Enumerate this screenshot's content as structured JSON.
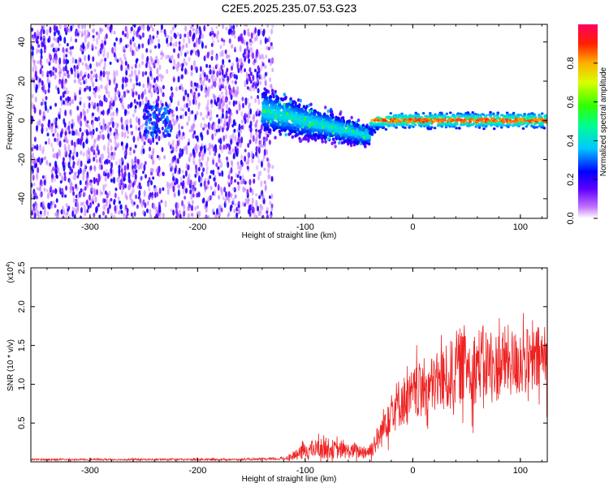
{
  "title": "C2E5.2025.235.07.53.G23",
  "colors": {
    "snr_line": "#ee2222",
    "scatter_base": "#7a10f0",
    "scatter_faint": "#c9b2f2"
  },
  "chart_data": [
    {
      "type": "heatmap",
      "name": "spectrogram",
      "xlabel": "Height of straight line (km)",
      "ylabel": "Frequency (Hz)",
      "xlim": [
        -355,
        125
      ],
      "ylim": [
        -50,
        49
      ],
      "xticks": [
        -300,
        -200,
        -100,
        0,
        100
      ],
      "xtick_labels": [
        "-300",
        "-200",
        "-100",
        "0",
        "100"
      ],
      "yticks": [
        -40,
        -20,
        0,
        20,
        40
      ],
      "ytick_labels": [
        "-40",
        "-20",
        "0",
        "20",
        "40"
      ],
      "colorbar": {
        "label": "Normalized spectral amplitude",
        "range": [
          0,
          1
        ],
        "ticks": [
          0.0,
          0.2,
          0.4,
          0.6,
          0.8
        ],
        "tick_labels": [
          "0.0",
          "0.2",
          "0.4",
          "0.6",
          "0.8"
        ]
      },
      "features": [
        {
          "desc": "diffuse noise",
          "x_range": [
            -355,
            -140
          ],
          "freq_range": [
            -50,
            49
          ],
          "amplitude": 0.15
        },
        {
          "desc": "wide band narrowing",
          "x_range": [
            -140,
            -40
          ],
          "freq_center": [
            5,
            -8
          ],
          "amplitude": 0.3
        },
        {
          "desc": "carrier tone",
          "x_range": [
            -40,
            125
          ],
          "freq_center": 0,
          "amplitude": 0.9
        }
      ]
    },
    {
      "type": "line",
      "name": "snr",
      "xlabel": "Height of straight line (km)",
      "ylabel": "SNR (10 * v/v)",
      "scale_label": "(x10",
      "scale_exp": "4",
      "xlim": [
        -355,
        125
      ],
      "ylim": [
        0,
        2.5
      ],
      "xticks": [
        -300,
        -200,
        -100,
        0,
        100
      ],
      "xtick_labels": [
        "-300",
        "-200",
        "-100",
        "0",
        "100"
      ],
      "yticks": [
        0.5,
        1.0,
        1.5,
        2.0,
        2.5
      ],
      "ytick_labels": [
        "0.5",
        "1.0",
        "1.5",
        "2.0",
        "2.5"
      ],
      "series": [
        {
          "name": "SNR",
          "x": [
            -355,
            -330,
            -300,
            -270,
            -240,
            -210,
            -180,
            -150,
            -120,
            -110,
            -100,
            -90,
            -80,
            -70,
            -60,
            -50,
            -40,
            -30,
            -25,
            -20,
            -15,
            -10,
            -5,
            0,
            5,
            10,
            15,
            20,
            25,
            30,
            35,
            40,
            45,
            50,
            55,
            60,
            65,
            70,
            75,
            80,
            85,
            90,
            95,
            100,
            105,
            110,
            115,
            120,
            125
          ],
          "y_mean": [
            0.03,
            0.03,
            0.03,
            0.03,
            0.03,
            0.03,
            0.03,
            0.03,
            0.04,
            0.08,
            0.14,
            0.17,
            0.18,
            0.15,
            0.14,
            0.13,
            0.14,
            0.35,
            0.55,
            0.7,
            0.72,
            0.8,
            0.78,
            0.85,
            0.9,
            0.95,
            0.95,
            1.0,
            1.05,
            1.05,
            1.1,
            1.2,
            1.25,
            1.3,
            1.2,
            1.25,
            1.3,
            1.25,
            1.2,
            1.25,
            1.3,
            1.3,
            1.25,
            1.35,
            1.3,
            1.25,
            1.3,
            1.35,
            1.3
          ],
          "y_spread": [
            0.02,
            0.02,
            0.02,
            0.02,
            0.02,
            0.02,
            0.02,
            0.02,
            0.03,
            0.1,
            0.2,
            0.22,
            0.25,
            0.2,
            0.18,
            0.16,
            0.2,
            0.35,
            0.5,
            0.55,
            0.6,
            0.6,
            0.6,
            0.65,
            0.65,
            0.7,
            0.7,
            0.7,
            0.75,
            0.8,
            0.85,
            0.9,
            0.9,
            0.9,
            0.85,
            0.9,
            0.85,
            0.85,
            0.8,
            0.85,
            0.85,
            0.85,
            0.8,
            0.9,
            0.8,
            0.8,
            0.8,
            0.8,
            0.75
          ]
        }
      ]
    }
  ]
}
